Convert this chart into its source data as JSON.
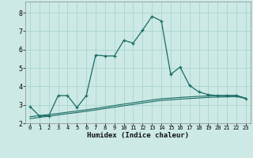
{
  "xlabel": "Humidex (Indice chaleur)",
  "background_color": "#cce9e5",
  "grid_color": "#aad4cf",
  "line_color": "#1a6b65",
  "xlim": [
    -0.5,
    23.5
  ],
  "ylim": [
    2.0,
    8.6
  ],
  "x_values": [
    0,
    1,
    2,
    3,
    4,
    5,
    6,
    7,
    8,
    9,
    10,
    11,
    12,
    13,
    14,
    15,
    16,
    17,
    18,
    19,
    20,
    21,
    22,
    23
  ],
  "line1_y": [
    2.9,
    2.4,
    2.4,
    3.5,
    3.5,
    2.85,
    3.5,
    5.7,
    5.65,
    5.65,
    6.5,
    6.35,
    7.05,
    7.8,
    7.55,
    4.65,
    5.05,
    4.05,
    3.7,
    3.55,
    3.5,
    3.5,
    3.5,
    3.35
  ],
  "line2_y": [
    2.35,
    2.42,
    2.47,
    2.53,
    2.6,
    2.66,
    2.73,
    2.8,
    2.88,
    2.96,
    3.04,
    3.11,
    3.19,
    3.26,
    3.33,
    3.36,
    3.4,
    3.43,
    3.46,
    3.48,
    3.5,
    3.51,
    3.52,
    3.35
  ],
  "line3_y": [
    2.25,
    2.32,
    2.38,
    2.45,
    2.52,
    2.58,
    2.65,
    2.72,
    2.8,
    2.87,
    2.95,
    3.02,
    3.1,
    3.17,
    3.24,
    3.27,
    3.31,
    3.34,
    3.37,
    3.4,
    3.42,
    3.43,
    3.44,
    3.35
  ],
  "xtick_labels": [
    "0",
    "1",
    "2",
    "3",
    "4",
    "5",
    "6",
    "7",
    "8",
    "9",
    "10",
    "11",
    "12",
    "13",
    "14",
    "15",
    "16",
    "17",
    "18",
    "19",
    "20",
    "21",
    "22",
    "23"
  ],
  "ytick_values": [
    2,
    3,
    4,
    5,
    6,
    7,
    8
  ]
}
